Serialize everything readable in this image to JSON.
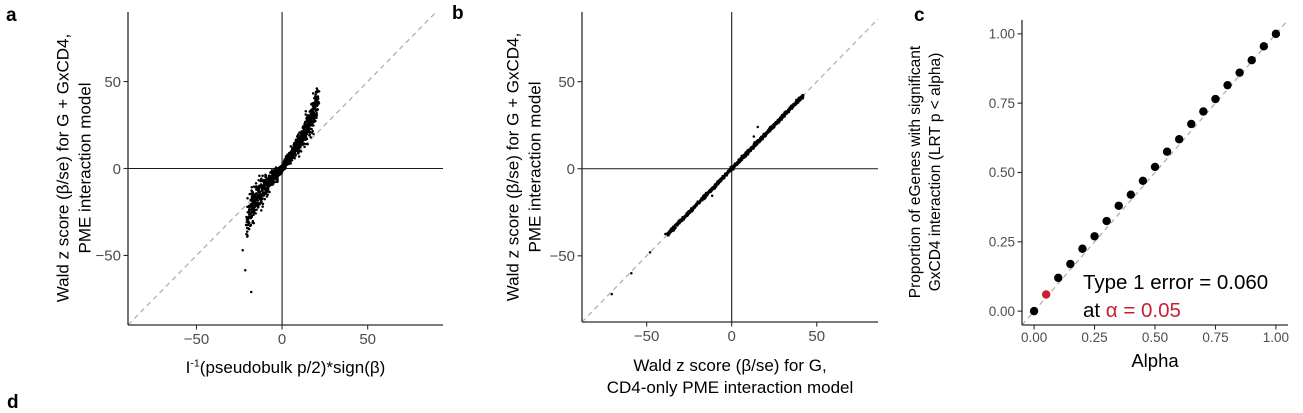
{
  "figure": {
    "partial_next_panel_label": "d",
    "colors": {
      "point": "#000000",
      "axis": "#2b2b2b",
      "zero_line": "#1a1a1a",
      "tick_label": "#4d4d4d",
      "identity_line": "#b0b0b0",
      "highlight_red": "#c9202e"
    }
  },
  "panels_ui": {
    "a": {
      "letter": "a",
      "ylabel_line1": "Wald z score (β/se) for G + GxCD4,",
      "ylabel_line2": "PME interaction model",
      "xlabel_pre": "I",
      "xlabel_sup": "-1",
      "xlabel_post": "(pseudobulk p/2)*sign(β)"
    },
    "b": {
      "letter": "b",
      "ylabel_line1": "Wald z score (β/se) for G + GxCD4,",
      "ylabel_line2": "PME interaction model",
      "xlabel_line1": "Wald z score (β/se) for G,",
      "xlabel_line2": "CD4-only PME interaction model"
    },
    "c": {
      "letter": "c",
      "ylabel_line1": "Proportion of eGenes with significant",
      "ylabel_line2": "GxCD4 interaction (LRT p < alpha)",
      "xlabel": "Alpha"
    }
  },
  "chart_data": [
    {
      "panel": "a",
      "type": "scatter",
      "title": "",
      "xlabel": "I^-1(pseudobulk p/2)*sign(β)",
      "ylabel": "Wald z score (β/se) for G + GxCD4, PME interaction model",
      "xlim": [
        -90,
        94
      ],
      "ylim": [
        -90,
        90
      ],
      "xticks": [
        -50,
        0,
        50
      ],
      "xtick_labels": [
        "−50",
        "0",
        "50"
      ],
      "yticks": [
        -50,
        0,
        50
      ],
      "ytick_labels": [
        "−50",
        "0",
        "50"
      ],
      "grid": false,
      "zero_lines": true,
      "identity_line": true,
      "point_radius": 1.25,
      "clouds": [
        {
          "seed": 7,
          "n": 760,
          "sign": 1,
          "xmin": 0.2,
          "xmax": 21,
          "xpow": 1.5,
          "sx": 0.8,
          "base": 1.4,
          "bend": 0.4,
          "bendpow": 2.0,
          "sy0": 1.2,
          "syk": 0.42
        },
        {
          "seed": 19,
          "n": 620,
          "sign": -1,
          "xmin": 0.2,
          "xmax": 21,
          "xpow": 1.5,
          "sx": 0.8,
          "base": 0.95,
          "bend": 0.45,
          "bendpow": 2.2,
          "sy0": 1.5,
          "syk": 0.5
        }
      ],
      "outliers": [
        [
          -23,
          -47
        ],
        [
          -21.5,
          -58.5
        ],
        [
          -18,
          -71
        ],
        [
          20.5,
          41
        ],
        [
          19.5,
          39
        ],
        [
          18,
          36
        ]
      ]
    },
    {
      "panel": "b",
      "type": "scatter",
      "title": "",
      "xlabel": "Wald z score (β/se) for G, CD4-only PME interaction model",
      "ylabel": "Wald z score (β/se) for G + GxCD4, PME interaction model",
      "xlim": [
        -88,
        86
      ],
      "ylim": [
        -88,
        90
      ],
      "xticks": [
        -50,
        0,
        50
      ],
      "xtick_labels": [
        "−50",
        "0",
        "50"
      ],
      "yticks": [
        -50,
        0,
        50
      ],
      "ytick_labels": [
        "−50",
        "0",
        "50"
      ],
      "grid": false,
      "zero_lines": true,
      "identity_line": true,
      "point_radius": 1.25,
      "bands": [
        {
          "seed": 5,
          "n": 420,
          "xmin": -38,
          "xmax": 0,
          "sy": 1.1
        },
        {
          "seed": 9,
          "n": 720,
          "xmin": 0,
          "xmax": 42,
          "sy": 1.1
        }
      ],
      "outliers": [
        [
          -70.5,
          -72
        ],
        [
          -59,
          -60
        ],
        [
          -48,
          -48
        ],
        [
          -39,
          -37.5
        ],
        [
          -11.5,
          -15.5
        ],
        [
          13,
          18.5
        ],
        [
          15.3,
          24
        ],
        [
          38,
          38.5
        ],
        [
          40,
          40.2
        ],
        [
          41.5,
          41.3
        ]
      ]
    },
    {
      "panel": "c",
      "type": "scatter",
      "title": "",
      "xlabel": "Alpha",
      "ylabel": "Proportion of eGenes with significant GxCD4 interaction (LRT p < alpha)",
      "xlim": [
        -0.05,
        1.05
      ],
      "ylim": [
        -0.05,
        1.05
      ],
      "xticks": [
        0,
        0.25,
        0.5,
        0.75,
        1
      ],
      "xtick_labels": [
        "0.00",
        "0.25",
        "0.50",
        "0.75",
        "1.00"
      ],
      "yticks": [
        0,
        0.25,
        0.5,
        0.75,
        1
      ],
      "ytick_labels": [
        "0.00",
        "0.25",
        "0.50",
        "0.75",
        "1.00"
      ],
      "grid": false,
      "zero_lines": false,
      "identity_line": true,
      "point_radius": 4.2,
      "x": [
        0,
        0.05,
        0.1,
        0.15,
        0.2,
        0.25,
        0.3,
        0.35,
        0.4,
        0.45,
        0.5,
        0.55,
        0.6,
        0.65,
        0.7,
        0.75,
        0.8,
        0.85,
        0.9,
        0.95,
        1.0
      ],
      "y": [
        0.0,
        0.06,
        0.12,
        0.17,
        0.225,
        0.27,
        0.325,
        0.38,
        0.42,
        0.47,
        0.52,
        0.575,
        0.62,
        0.675,
        0.72,
        0.765,
        0.815,
        0.86,
        0.905,
        0.955,
        1.0
      ],
      "highlight_index": 1,
      "highlight_color": "#c9202e",
      "annotation": {
        "line1": "Type 1 error = 0.060",
        "line2_prefix": "at ",
        "line2_highlight": "α = 0.05"
      }
    }
  ]
}
